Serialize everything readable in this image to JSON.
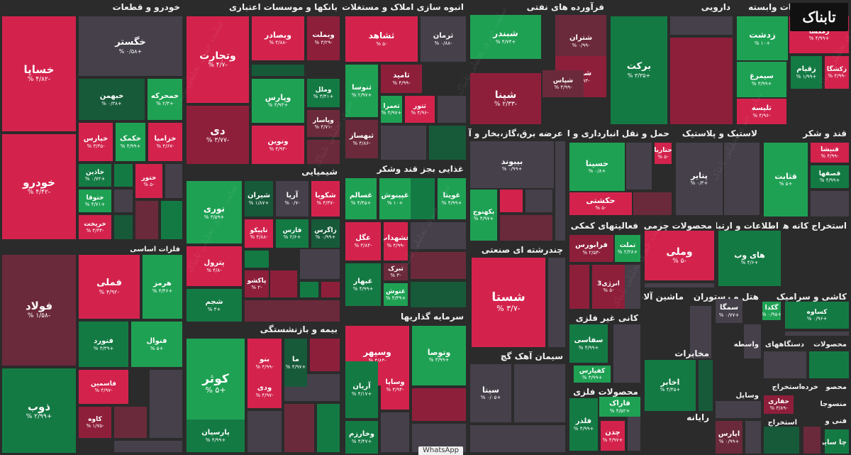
{
  "colors": {
    "pos_strong": "#1fa154",
    "pos_mid": "#147a44",
    "pos_weak": "#175a3a",
    "neutral": "#45404a",
    "neg_weak": "#6b2a3b",
    "neg_mid": "#8e1f3b",
    "neg_strong": "#d3234d"
  },
  "logo": "تابناک",
  "watermark": "سایت خبری تحلیلی تابناک",
  "whatsapp_label": "WhatsApp",
  "sectors": [
    {
      "name": "خودرو و قطعات",
      "tiles": [
        {
          "name": "خساپا",
          "change": "-۴/۸۲ %",
          "c": "neg_strong"
        },
        {
          "name": "خودرو",
          "change": "-۴/۴۲ %",
          "c": "neg_strong"
        },
        {
          "name": "خگستر",
          "change": "+۰/۵۸ %",
          "c": "neutral"
        },
        {
          "name": "خبهمن",
          "change": "+۰/۳۸ %",
          "c": "pos_weak"
        },
        {
          "name": "خمحرکه",
          "change": "+۲/۳ %",
          "c": "pos_strong"
        },
        {
          "name": "خپارس",
          "change": "-۳/۳۵ %",
          "c": "neg_strong"
        },
        {
          "name": "خکمک",
          "change": "+۴/۹۹ %",
          "c": "pos_strong"
        },
        {
          "name": "خزامیا",
          "change": "-۴/۶۷ %",
          "c": "neg_strong"
        },
        {
          "name": "خاذین",
          "change": "+۰/۷۲ %",
          "c": "pos_mid"
        },
        {
          "name": "ختوقا",
          "change": "+۴/۷۱ %",
          "c": "pos_strong"
        },
        {
          "name": "خریخت",
          "change": "-۴/۳۴ %",
          "c": "neg_strong"
        },
        {
          "name": "ختور",
          "change": "-۵ %",
          "c": "neg_strong"
        }
      ]
    },
    {
      "name": "فلزات اساسی",
      "tiles": [
        {
          "name": "فولاد",
          "change": "-۱/۵۸ %",
          "c": "neg_weak"
        },
        {
          "name": "ذوب",
          "change": "+۲/۹۹ %",
          "c": "pos_mid"
        },
        {
          "name": "فملی",
          "change": "-۴/۹۲ %",
          "c": "neg_strong"
        },
        {
          "name": "هرمز",
          "change": "+۴/۴۶ %",
          "c": "pos_strong"
        },
        {
          "name": "فنورد",
          "change": "+۳/۳۹ %",
          "c": "pos_mid"
        },
        {
          "name": "فنوال",
          "change": "+۵ %",
          "c": "pos_strong"
        },
        {
          "name": "فاسمین",
          "change": "-۴/۹۷ %",
          "c": "neg_strong"
        },
        {
          "name": "کاوه",
          "change": "-۱/۷۵ %",
          "c": "neg_mid"
        }
      ]
    },
    {
      "name": "بانکها و موسسات اعتباری",
      "tiles": [
        {
          "name": "وتجارت",
          "change": "-۴/۷ %",
          "c": "neg_strong"
        },
        {
          "name": "وبصادر",
          "change": "-۴/۸۸ %",
          "c": "neg_strong"
        },
        {
          "name": "وبملت",
          "change": "-۳/۲۹ %",
          "c": "neg_mid"
        },
        {
          "name": "دی",
          "change": "-۳/۷۷ %",
          "c": "neg_mid"
        },
        {
          "name": "وپارس",
          "change": "+۴/۹۳ %",
          "c": "pos_strong"
        },
        {
          "name": "وملل",
          "change": "+۳/۴۱ %",
          "c": "pos_mid"
        },
        {
          "name": "ونوین",
          "change": "-۴/۹۳ %",
          "c": "neg_strong"
        },
        {
          "name": "وپاسار",
          "change": "-۴/۷۱ %",
          "c": "neg_weak"
        }
      ]
    },
    {
      "name": "شیمیایی",
      "tiles": [
        {
          "name": "نوری",
          "change": "+۳/۵۹ %",
          "c": "pos_strong"
        },
        {
          "name": "شیران",
          "change": "+۱/۸۷ %",
          "c": "pos_weak"
        },
        {
          "name": "آریا",
          "change": "-۰/۷ %",
          "c": "neutral"
        },
        {
          "name": "شکویا",
          "change": "-۴/۳۷ %",
          "c": "neg_strong"
        },
        {
          "name": "تاپیکو",
          "change": "-۴/۸۸ %",
          "c": "neg_strong"
        },
        {
          "name": "فارس",
          "change": "+۲/۶ %",
          "c": "pos_mid"
        },
        {
          "name": "زاگرس",
          "change": "+۰/۹۹ %",
          "c": "pos_weak"
        },
        {
          "name": "پترول",
          "change": "-۴/۸ %",
          "c": "neg_strong"
        },
        {
          "name": "شجم",
          "change": "+۳ %",
          "c": "pos_mid"
        },
        {
          "name": "پاکشو",
          "change": "-۲ %",
          "c": "neg_mid"
        }
      ]
    },
    {
      "name": "بیمه و بازنشستگی",
      "tiles": [
        {
          "name": "کوثر",
          "change": "+۵ %",
          "c": "pos_strong"
        },
        {
          "name": "بنو",
          "change": "-۴/۹۹ %",
          "c": "neg_strong"
        },
        {
          "name": "ما",
          "change": "+۴/۹۷ %",
          "c": "pos_weak"
        },
        {
          "name": "ودی",
          "change": "-۴/۹۷ %",
          "c": "neg_strong"
        },
        {
          "name": "پارسیان",
          "change": "+۴/۹۹ %",
          "c": "pos_mid"
        }
      ]
    },
    {
      "name": "انبوه سازی املاک و مستغلات",
      "tiles": [
        {
          "name": "ثشاهد",
          "change": "-۵ %",
          "c": "neg_strong"
        },
        {
          "name": "ثرمان",
          "change": "-۰/۸۸ %",
          "c": "neutral"
        },
        {
          "name": "ثنوسا",
          "change": "+۲/۹۷ %",
          "c": "pos_strong"
        },
        {
          "name": "ثامید",
          "change": "-۴/۹۹ %",
          "c": "neg_mid"
        },
        {
          "name": "ثعمرا",
          "change": "+۴/۹۷ %",
          "c": "pos_strong"
        },
        {
          "name": "ثتور",
          "change": "-۴/۹۶ %",
          "c": "neg_strong"
        },
        {
          "name": "ثبهساز",
          "change": "-۴/۸۶ %",
          "c": "neg_weak"
        }
      ]
    },
    {
      "name": "غذایی بجز قند وشکر",
      "tiles": [
        {
          "name": "غسالم",
          "change": "+۴/۴۵ %",
          "c": "pos_strong"
        },
        {
          "name": "غپینوش",
          "change": "+۱۰ %",
          "c": "pos_strong"
        },
        {
          "name": "غویتا",
          "change": "+۴/۹۹ %",
          "c": "pos_strong"
        },
        {
          "name": "غگل",
          "change": "-۴/۸۴ %",
          "c": "neg_strong"
        },
        {
          "name": "غشهداب",
          "change": "-۴/۹۹ %",
          "c": "neg_strong"
        },
        {
          "name": "تبرک",
          "change": "-۳ %",
          "c": "neg_weak"
        },
        {
          "name": "غبهار",
          "change": "+۴/۹۹ %",
          "c": "pos_mid"
        },
        {
          "name": "غنوش",
          "change": "+۴/۳۹ %",
          "c": "pos_strong"
        }
      ]
    },
    {
      "name": "سرمایه گذاریها",
      "tiles": [
        {
          "name": "وسپهر",
          "change": "-۴/۸۴ %",
          "c": "neg_strong"
        },
        {
          "name": "وتوصا",
          "change": "+۳/۹۹ %",
          "c": "pos_strong"
        },
        {
          "name": "آریان",
          "change": "+۴/۱۷ %",
          "c": "pos_mid"
        },
        {
          "name": "وساپا",
          "change": "-۴/۹۴ %",
          "c": "neg_strong"
        },
        {
          "name": "وخارزم",
          "change": "+۴/۴۷ %",
          "c": "pos_mid"
        }
      ]
    },
    {
      "name": "فرآورده های نفتی",
      "tiles": [
        {
          "name": "شبندر",
          "change": "+۴/۷۴ %",
          "c": "pos_strong"
        },
        {
          "name": "شتران",
          "change": "-۰/۹۹ %",
          "c": "neg_weak"
        },
        {
          "name": "شبریز",
          "change": "-۴/۹۳ %",
          "c": "neg_mid"
        },
        {
          "name": "شپنا",
          "change": "-۲/۳۳ %",
          "c": "neg_mid"
        },
        {
          "name": "شپاس",
          "change": "-۴/۹۹ %",
          "c": "neg_weak"
        }
      ]
    },
    {
      "name": "عرضه برق،گاز،بخار و آب گرم",
      "tiles": [
        {
          "name": "بپیوند",
          "change": "+۰/۹۹ %",
          "c": "neutral"
        },
        {
          "name": "بکهنوج",
          "change": "+۴/۹۷ %",
          "c": "pos_strong"
        }
      ]
    },
    {
      "name": "چندرشته ای صنعتی",
      "tiles": [
        {
          "name": "شستا",
          "change": "-۳/۷ %",
          "c": "neg_strong"
        }
      ]
    },
    {
      "name": "سیمان آهک گچ",
      "tiles": [
        {
          "name": "سیتا",
          "change": "+۰/۰۵ %",
          "c": "neutral"
        }
      ]
    },
    {
      "name": "دارویی",
      "tiles": [
        {
          "name": "برکت",
          "change": "+۳/۳۵ %",
          "c": "pos_mid"
        }
      ]
    },
    {
      "name": "زراعت و خدمات وابسته",
      "tiles": [
        {
          "name": "زدشت",
          "change": "+۱۰ %",
          "c": "pos_strong"
        },
        {
          "name": "زمگسا",
          "change": "+۴/۹۹ %",
          "c": "neg_strong"
        },
        {
          "name": "زکشگا",
          "change": "-۴/۹۹ %",
          "c": "neg_strong"
        },
        {
          "name": "زقیام",
          "change": "+۱/۹۹ %",
          "c": "pos_mid"
        },
        {
          "name": "سیمرغ",
          "change": "+۳/۹۹ %",
          "c": "pos_strong"
        },
        {
          "name": "تلیسه",
          "change": "-۴/۹۶ %",
          "c": "neg_strong"
        }
      ]
    },
    {
      "name": "حمل و نقل انبارداری و ارتباطات",
      "tiles": [
        {
          "name": "حسینا",
          "change": "+۰/۸ %",
          "c": "pos_strong"
        },
        {
          "name": "حکشتی",
          "change": "-۵ %",
          "c": "neg_strong"
        },
        {
          "name": "حتاریا",
          "change": "-۵ %",
          "c": "neg_strong"
        }
      ]
    },
    {
      "name": "لاستیک و پلاستیک",
      "tiles": [
        {
          "name": "پتایر",
          "change": "+۰/۳ %",
          "c": "neutral"
        }
      ]
    },
    {
      "name": "قند و شکر",
      "tiles": [
        {
          "name": "قثابت",
          "change": "+۵ %",
          "c": "pos_strong"
        },
        {
          "name": "قنیشا",
          "change": "-۴/۹۹ %",
          "c": "neg_strong"
        },
        {
          "name": "قصفها",
          "change": "+۴/۹۹ %",
          "c": "pos_mid"
        }
      ]
    },
    {
      "name": "فعالیتهای کمکی به نهاد",
      "tiles": [
        {
          "name": "فرابورس",
          "change": "-۲/۵۴ %",
          "c": "neg_mid"
        },
        {
          "name": "تملت",
          "change": "+۲/۲۸ %",
          "c": "pos_strong"
        },
        {
          "name": "انرژی3",
          "change": "-۵ %",
          "c": "neg_mid"
        }
      ]
    },
    {
      "name": "محصولات چرمی",
      "tiles": [
        {
          "name": "وملی",
          "change": "-۵ %",
          "c": "neg_strong"
        }
      ]
    },
    {
      "name": "اطلاعات و ارتباطات",
      "tiles": [
        {
          "name": "های وب",
          "change": "+۴/۶ %",
          "c": "pos_mid"
        }
      ]
    },
    {
      "name": "استخراج کانه های",
      "tiles": []
    },
    {
      "name": "کانی غیر فلزی",
      "tiles": [
        {
          "name": "سفاسی",
          "change": "+۴/۹۹ %",
          "c": "pos_mid"
        },
        {
          "name": "کفپارس",
          "change": "+۳/۹۹ %",
          "c": "pos_strong"
        }
      ]
    },
    {
      "name": "ماشین آلات و",
      "tiles": []
    },
    {
      "name": "هتل و رستوران",
      "tiles": [
        {
          "name": "سمگا",
          "change": "+۰/۷۷ %",
          "c": "neutral"
        },
        {
          "name": "گکدا",
          "change": "+۰/۹۵ %",
          "c": "pos_strong"
        }
      ]
    },
    {
      "name": "کاشی و سرامیک",
      "tiles": [
        {
          "name": "کساوه",
          "change": "+۰/۹۶ %",
          "c": "pos_mid"
        }
      ]
    },
    {
      "name": "مخابرات",
      "tiles": [
        {
          "name": "اخابر",
          "change": "+۴/۴۵ %",
          "c": "pos_mid"
        }
      ]
    },
    {
      "name": "محصولات فلزی",
      "tiles": [
        {
          "name": "فاراک",
          "change": "+۴/۵۲ %",
          "c": "pos_strong"
        },
        {
          "name": "فلذر",
          "change": "+۴/۹۹ %",
          "c": "pos_mid"
        },
        {
          "name": "چدن",
          "change": "+۴/۹۷ %",
          "c": "neg_strong"
        }
      ]
    },
    {
      "name": "رایانه",
      "tiles": [
        {
          "name": "ایارس",
          "change": "+۰/۹۹ %",
          "c": "neg_weak"
        }
      ]
    },
    {
      "name": "واسطه",
      "tiles": []
    },
    {
      "name": "وسایل",
      "tiles": []
    },
    {
      "name": "دستگاههای",
      "tiles": []
    },
    {
      "name": "محصولات",
      "tiles": []
    },
    {
      "name": "استخراج",
      "tiles": [
        {
          "name": "حفاری",
          "change": "-۳/۸۹ %",
          "c": "neg_mid"
        }
      ]
    },
    {
      "name": "خرده",
      "tiles": []
    },
    {
      "name": "محصو",
      "tiles": []
    },
    {
      "name": "منسوجا",
      "tiles": []
    },
    {
      "name": "استخراج ۲",
      "label": "استخراج",
      "tiles": []
    },
    {
      "name": "فنی و",
      "tiles": []
    },
    {
      "name": "چا سایر",
      "tiles": []
    }
  ]
}
